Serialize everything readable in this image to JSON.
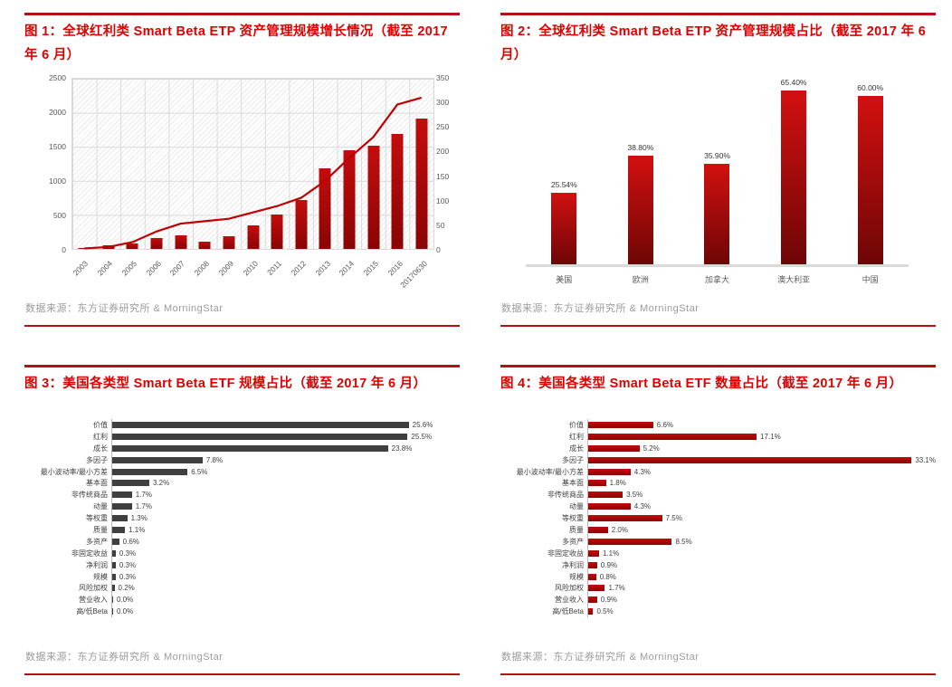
{
  "panels": [
    {
      "title": "图 1：全球红利类 Smart Beta ETP 资产管理规模增长情况（截至 2017 年 6 月）",
      "source": "数据来源：东方证券研究所 & MorningStar"
    },
    {
      "title": "图 2：全球红利类 Smart Beta ETP 资产管理规模占比（截至 2017 年 6 月）",
      "source": "数据来源：东方证券研究所 & MorningStar"
    },
    {
      "title": "图 3：美国各类型 Smart Beta ETF 规模占比（截至 2017 年 6 月）",
      "source": "数据来源：东方证券研究所 & MorningStar"
    },
    {
      "title": "图 4：美国各类型 Smart Beta ETF 数量占比（截至 2017 年 6 月）",
      "source": "数据来源：东方证券研究所 & MorningStar"
    }
  ],
  "colors": {
    "title_red": "#e00000",
    "rule_red": "#b51111",
    "bar_red_top": "#d21010",
    "bar_red_bottom": "#6e0606",
    "bar_gray": "#3f3f3f",
    "line_red": "#c00000",
    "axis_text": "#595959",
    "source_gray": "#9b9b9b"
  },
  "chart_data": [
    {
      "type": "combo_bar_line",
      "title": "全球红利类 Smart Beta ETP 资产管理规模增长情况（截至 2017 年 6 月）",
      "categories": [
        "2003",
        "2004",
        "2005",
        "2006",
        "2007",
        "2008",
        "2009",
        "2010",
        "2011",
        "2012",
        "2013",
        "2014",
        "2015",
        "2016",
        "20170630"
      ],
      "series": [
        {
          "type": "bar",
          "axis": "left",
          "values": [
            15,
            60,
            85,
            165,
            200,
            110,
            185,
            350,
            510,
            720,
            1180,
            1450,
            1510,
            1690,
            1920
          ]
        },
        {
          "type": "line",
          "axis": "right",
          "values": [
            1,
            4,
            14,
            36,
            52,
            57,
            62,
            75,
            88,
            105,
            140,
            187,
            230,
            297,
            311
          ]
        }
      ],
      "left_axis": {
        "min": 0,
        "max": 2500,
        "ticks": [
          0,
          500,
          1000,
          1500,
          2000,
          2500
        ]
      },
      "right_axis": {
        "min": 0,
        "max": 350,
        "ticks": [
          0,
          50,
          100,
          150,
          200,
          250,
          300,
          350
        ]
      },
      "grid": true,
      "legend": "none"
    },
    {
      "type": "bar",
      "title": "全球红利类 Smart Beta ETP 资产管理规模占比（截至 2017 年 6 月）",
      "categories": [
        "美国",
        "欧洲",
        "加拿大",
        "澳大利亚",
        "中国"
      ],
      "values": [
        25.54,
        38.8,
        35.9,
        65.4,
        60.0
      ],
      "decimals": 2,
      "ylim": [
        0,
        66.5
      ],
      "grid": false,
      "legend": "none"
    },
    {
      "type": "hbar",
      "title": "美国各类型 Smart Beta ETF 规模占比（截至 2017 年 6 月）",
      "categories": [
        "价值",
        "红利",
        "成长",
        "多因子",
        "最小波动率/最小方差",
        "基本面",
        "非传统商品",
        "动量",
        "等权重",
        "质量",
        "多资产",
        "非固定收益",
        "净利润",
        "规模",
        "风险加权",
        "营业收入",
        "高/低Beta"
      ],
      "values": [
        25.6,
        25.5,
        23.8,
        7.8,
        6.5,
        3.2,
        1.7,
        1.7,
        1.3,
        1.1,
        0.6,
        0.3,
        0.3,
        0.3,
        0.2,
        0.0,
        0.0
      ],
      "decimals": 1,
      "xlim": [
        0,
        30
      ],
      "grid": false,
      "legend": "none"
    },
    {
      "type": "hbar",
      "title": "美国各类型 Smart Beta ETF 数量占比（截至 2017 年 6 月）",
      "categories": [
        "价值",
        "红利",
        "成长",
        "多因子",
        "最小波动率/最小方差",
        "基本面",
        "非传统商品",
        "动量",
        "等权重",
        "质量",
        "多资产",
        "非固定收益",
        "净利润",
        "规模",
        "风险加权",
        "营业收入",
        "高/低Beta"
      ],
      "values": [
        6.6,
        17.1,
        5.2,
        33.1,
        4.3,
        1.8,
        3.5,
        4.3,
        7.5,
        2.0,
        8.5,
        1.1,
        0.9,
        0.8,
        1.7,
        0.9,
        0.5
      ],
      "decimals": 1,
      "xlim": [
        0,
        35.3
      ],
      "grid": false,
      "legend": "none"
    }
  ]
}
